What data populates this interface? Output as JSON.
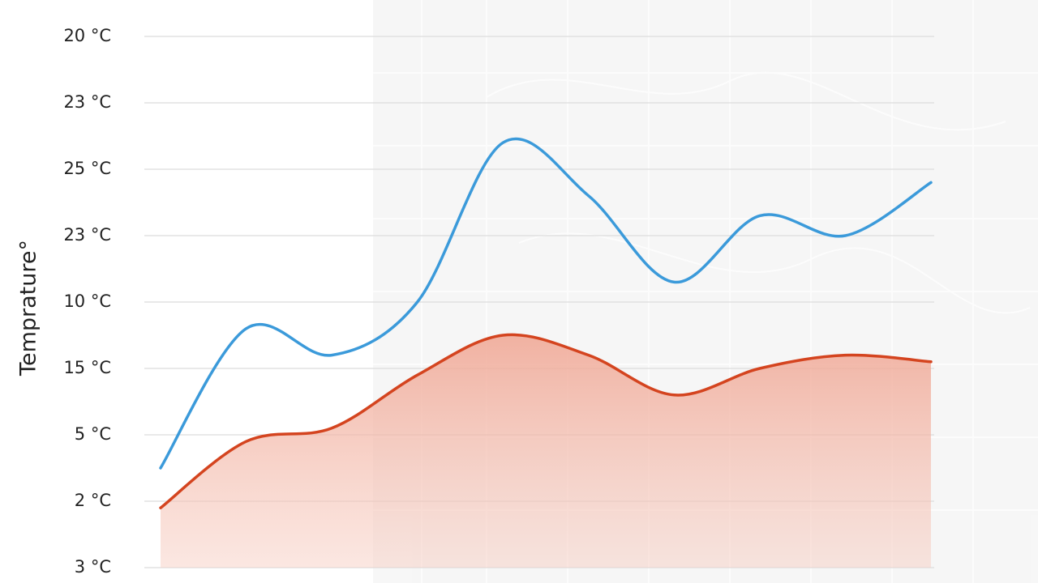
{
  "chart_data": {
    "type": "line",
    "y_label": "Temprature°",
    "categories": [
      null,
      null,
      null,
      null,
      null,
      null,
      null,
      null,
      null,
      null
    ],
    "series": [
      {
        "color": "#3b9ada",
        "area": false,
        "values": [
          1.5,
          3.6,
          3.2,
          4.0,
          6.4,
          5.6,
          4.3,
          5.3,
          5.0,
          5.8
        ]
      },
      {
        "color": "#d4441f",
        "area": true,
        "values": [
          0.9,
          1.9,
          2.1,
          2.9,
          3.5,
          3.2,
          2.6,
          3.0,
          3.2,
          3.1
        ]
      }
    ],
    "ylim": [
      0,
      8
    ],
    "yticks": [
      {
        "value": 0,
        "label": "3 °C"
      },
      {
        "value": 1,
        "label": "2 °C"
      },
      {
        "value": 2,
        "label": "5 °C"
      },
      {
        "value": 3,
        "label": "15 °C"
      },
      {
        "value": 4,
        "label": "10 °C"
      },
      {
        "value": 5,
        "label": "23 °C"
      },
      {
        "value": 6,
        "label": "25 °C"
      },
      {
        "value": 7,
        "label": "23 °C"
      },
      {
        "value": 8,
        "label": "20 °C"
      }
    ],
    "grid": true
  }
}
